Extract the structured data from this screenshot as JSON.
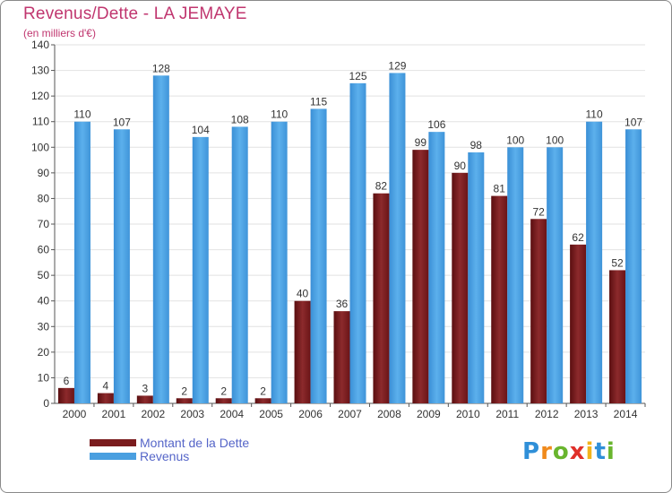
{
  "title": "Revenus/Dette - LA JEMAYE",
  "subtitle": "(en milliers d'€)",
  "logo": {
    "letters": [
      "P",
      "r",
      "o",
      "x",
      "i",
      "t",
      "i"
    ],
    "colors": [
      "#2f8fd8",
      "#f08a1c",
      "#69b52e",
      "#e0302a",
      "#f2b31b",
      "#2f8fd8",
      "#69b52e"
    ]
  },
  "legend": [
    {
      "label": "Montant de la Dette",
      "color": "#7a1c1e"
    },
    {
      "label": "Revenus",
      "color": "#4a9fe0"
    }
  ],
  "chart_data": {
    "type": "bar",
    "title": "Revenus/Dette - LA JEMAYE",
    "subtitle": "(en milliers d'€)",
    "categories": [
      "2000",
      "2001",
      "2002",
      "2003",
      "2004",
      "2005",
      "2006",
      "2007",
      "2008",
      "2009",
      "2010",
      "2011",
      "2012",
      "2013",
      "2014"
    ],
    "series": [
      {
        "name": "Montant de la Dette",
        "color": "#7a1c1e",
        "values": [
          6,
          4,
          3,
          2,
          2,
          2,
          40,
          36,
          82,
          99,
          90,
          81,
          72,
          62,
          52
        ]
      },
      {
        "name": "Revenus",
        "color": "#4a9fe0",
        "values": [
          110,
          107,
          128,
          104,
          108,
          110,
          115,
          125,
          129,
          106,
          98,
          100,
          100,
          110,
          107
        ]
      }
    ],
    "ylim": [
      0,
      140
    ],
    "yticks": [
      0,
      10,
      20,
      30,
      40,
      50,
      60,
      70,
      80,
      90,
      100,
      110,
      120,
      130,
      140
    ],
    "grid": true,
    "legend_position": "bottom-left"
  }
}
